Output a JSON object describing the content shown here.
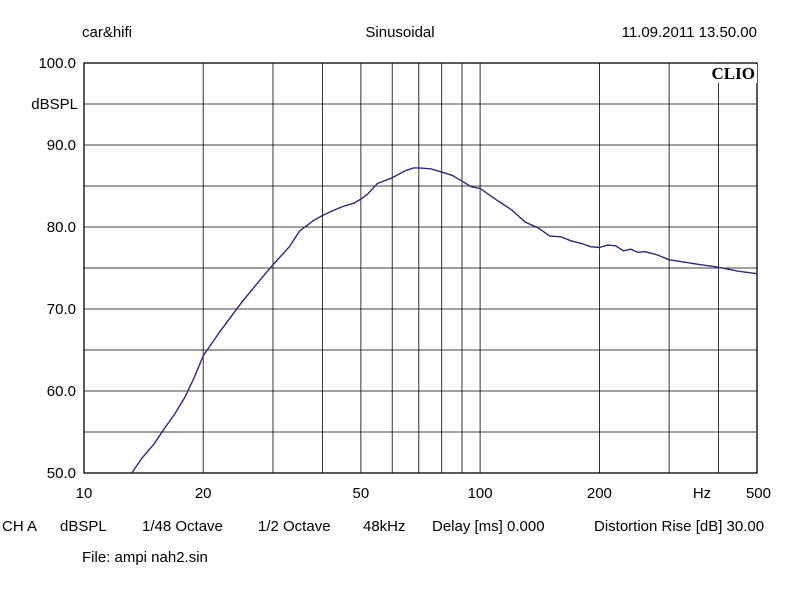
{
  "header": {
    "left": "car&hifi",
    "center": "Sinusoidal",
    "right": "11.09.2011 13.50.00"
  },
  "logo_text": "CLIO",
  "y_unit_label": "dBSPL",
  "x_unit_label": "Hz",
  "x_tick_labels": [
    {
      "value": 10,
      "label": "10"
    },
    {
      "value": 20,
      "label": "20"
    },
    {
      "value": 50,
      "label": "50"
    },
    {
      "value": 100,
      "label": "100"
    },
    {
      "value": 200,
      "label": "200"
    },
    {
      "value": 500,
      "label": "500"
    }
  ],
  "y_tick_labels": [
    {
      "value": 100,
      "label": "100.0"
    },
    {
      "value": 90,
      "label": "90.0"
    },
    {
      "value": 80,
      "label": "80.0"
    },
    {
      "value": 70,
      "label": "70.0"
    },
    {
      "value": 60,
      "label": "60.0"
    },
    {
      "value": 50,
      "label": "50.0"
    }
  ],
  "footer": {
    "channel": "CH A",
    "unit": "dBSPL",
    "resolution": "1/48 Octave",
    "smoothing": "1/2 Octave",
    "sample_rate": "48kHz",
    "delay": "Delay [ms] 0.000",
    "distortion": "Distortion Rise [dB] 30.00",
    "file": "File: ampi nah2.sin"
  },
  "colors": {
    "curve": "#2a2a7a",
    "grid": "#000000",
    "background": "#ffffff"
  },
  "chart_data": {
    "type": "line",
    "title": "",
    "xlabel": "Hz",
    "ylabel": "dBSPL",
    "x_scale": "log",
    "xlim": [
      10,
      500
    ],
    "ylim": [
      50,
      100
    ],
    "grid": true,
    "x_gridlines": [
      20,
      30,
      40,
      50,
      60,
      70,
      80,
      90,
      100,
      200,
      300,
      400
    ],
    "y_gridlines": [
      55,
      60,
      65,
      70,
      75,
      80,
      85,
      90,
      95
    ],
    "series": [
      {
        "x": [
          13.2,
          14,
          15,
          16,
          17,
          18,
          19,
          20,
          22,
          25,
          28,
          30,
          33,
          35,
          38,
          40,
          43,
          45,
          48,
          50,
          52,
          55,
          60,
          65,
          68,
          70,
          75,
          80,
          85,
          90,
          95,
          100,
          110,
          120,
          130,
          140,
          150,
          160,
          170,
          180,
          190,
          200,
          210,
          220,
          230,
          240,
          250,
          260,
          270,
          280,
          300,
          330,
          360,
          400,
          450,
          500
        ],
        "y": [
          50.0,
          51.8,
          53.5,
          55.5,
          57.3,
          59.3,
          61.7,
          64.3,
          67.2,
          70.8,
          73.7,
          75.4,
          77.6,
          79.5,
          80.8,
          81.4,
          82.1,
          82.5,
          82.9,
          83.4,
          84.0,
          85.3,
          86.0,
          86.9,
          87.2,
          87.2,
          87.1,
          86.7,
          86.3,
          85.6,
          84.9,
          84.7,
          83.3,
          82.1,
          80.6,
          79.9,
          78.9,
          78.8,
          78.3,
          78.0,
          77.6,
          77.5,
          77.8,
          77.7,
          77.1,
          77.3,
          76.9,
          77.0,
          76.8,
          76.6,
          76.0,
          75.7,
          75.4,
          75.1,
          74.6,
          74.3
        ]
      }
    ]
  }
}
